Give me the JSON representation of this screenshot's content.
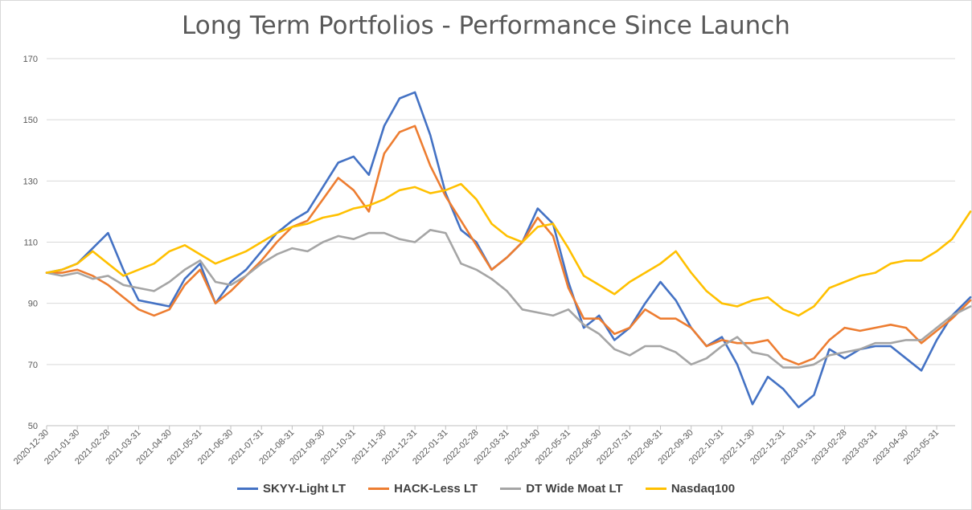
{
  "chart_data": {
    "type": "line",
    "title": "Long Term Portfolios - Performance Since Launch",
    "xlabel": "",
    "ylabel": "",
    "ylim": [
      50,
      170
    ],
    "yticks": [
      50,
      70,
      90,
      110,
      130,
      150,
      170
    ],
    "x_tick_labels": [
      "2020-12-30",
      "2021-01-30",
      "2021-02-28",
      "2021-03-31",
      "2021-04-30",
      "2021-05-31",
      "2021-06-30",
      "2021-07-31",
      "2021-08-31",
      "2021-09-30",
      "2021-10-31",
      "2021-11-30",
      "2021-12-31",
      "2022-01-31",
      "2022-02-28",
      "2022-03-31",
      "2022-04-30",
      "2022-05-31",
      "2022-06-30",
      "2022-07-31",
      "2022-08-31",
      "2022-09-30",
      "2022-10-31",
      "2022-11-30",
      "2022-12-31",
      "2023-01-31",
      "2023-02-28",
      "2023-03-31",
      "2023-04-30",
      "2023-05-31"
    ],
    "grid": "horizontal",
    "legend_position": "bottom",
    "series": [
      {
        "name": "SKYY-Light LT",
        "color": "#4472C4",
        "x": [
          0,
          0.5,
          1,
          1.5,
          2,
          2.5,
          3,
          3.5,
          4,
          4.5,
          5,
          5.5,
          6,
          6.5,
          7,
          7.5,
          8,
          8.5,
          9,
          9.5,
          10,
          10.5,
          11,
          11.5,
          12,
          12.5,
          13,
          13.5,
          14,
          14.5,
          15,
          15.5,
          16,
          16.5,
          17,
          17.5,
          18,
          18.5,
          19,
          19.5,
          20,
          20.5,
          21,
          21.5,
          22,
          22.5,
          23,
          23.5,
          24,
          24.5,
          25,
          25.5,
          26,
          26.5,
          27,
          27.5,
          28,
          28.5,
          29,
          29.5,
          30.1
        ],
        "values": [
          100,
          101,
          103,
          108,
          113,
          101,
          91,
          90,
          89,
          98,
          103,
          90,
          97,
          101,
          107,
          113,
          117,
          120,
          128,
          136,
          138,
          132,
          148,
          157,
          159,
          145,
          126,
          114,
          110,
          101,
          105,
          110,
          121,
          116,
          97,
          82,
          86,
          78,
          82,
          90,
          97,
          91,
          82,
          76,
          79,
          70,
          57,
          66,
          62,
          56,
          60,
          75,
          72,
          75,
          76,
          76,
          72,
          68,
          78,
          86,
          92
        ]
      },
      {
        "name": "HACK-Less LT",
        "color": "#ED7D31",
        "x": [
          0,
          0.5,
          1,
          1.5,
          2,
          2.5,
          3,
          3.5,
          4,
          4.5,
          5,
          5.5,
          6,
          6.5,
          7,
          7.5,
          8,
          8.5,
          9,
          9.5,
          10,
          10.5,
          11,
          11.5,
          12,
          12.5,
          13,
          13.5,
          14,
          14.5,
          15,
          15.5,
          16,
          16.5,
          17,
          17.5,
          18,
          18.5,
          19,
          19.5,
          20,
          20.5,
          21,
          21.5,
          22,
          22.5,
          23,
          23.5,
          24,
          24.5,
          25,
          25.5,
          26,
          26.5,
          27,
          27.5,
          28,
          28.5,
          29,
          29.5,
          30.1
        ],
        "values": [
          100,
          100,
          101,
          99,
          96,
          92,
          88,
          86,
          88,
          96,
          101,
          90,
          94,
          99,
          104,
          110,
          115,
          117,
          124,
          131,
          127,
          120,
          139,
          146,
          148,
          135,
          125,
          117,
          109,
          101,
          105,
          110,
          118,
          112,
          95,
          85,
          85,
          80,
          82,
          88,
          85,
          85,
          82,
          76,
          78,
          77,
          77,
          78,
          72,
          70,
          72,
          78,
          82,
          81,
          82,
          83,
          82,
          77,
          81,
          85,
          91
        ]
      },
      {
        "name": "DT Wide Moat LT",
        "color": "#A5A5A5",
        "x": [
          0,
          0.5,
          1,
          1.5,
          2,
          2.5,
          3,
          3.5,
          4,
          4.5,
          5,
          5.5,
          6,
          6.5,
          7,
          7.5,
          8,
          8.5,
          9,
          9.5,
          10,
          10.5,
          11,
          11.5,
          12,
          12.5,
          13,
          13.5,
          14,
          14.5,
          15,
          15.5,
          16,
          16.5,
          17,
          17.5,
          18,
          18.5,
          19,
          19.5,
          20,
          20.5,
          21,
          21.5,
          22,
          22.5,
          23,
          23.5,
          24,
          24.5,
          25,
          25.5,
          26,
          26.5,
          27,
          27.5,
          28,
          28.5,
          29,
          29.5,
          30.1
        ],
        "values": [
          100,
          99,
          100,
          98,
          99,
          96,
          95,
          94,
          97,
          101,
          104,
          97,
          96,
          99,
          103,
          106,
          108,
          107,
          110,
          112,
          111,
          113,
          113,
          111,
          110,
          114,
          113,
          103,
          101,
          98,
          94,
          88,
          87,
          86,
          88,
          83,
          80,
          75,
          73,
          76,
          76,
          74,
          70,
          72,
          76,
          79,
          74,
          73,
          69,
          69,
          70,
          73,
          74,
          75,
          77,
          77,
          78,
          78,
          82,
          86,
          89
        ]
      },
      {
        "name": "Nasdaq100",
        "color": "#FFC000",
        "x": [
          0,
          0.5,
          1,
          1.5,
          2,
          2.5,
          3,
          3.5,
          4,
          4.5,
          5,
          5.5,
          6,
          6.5,
          7,
          7.5,
          8,
          8.5,
          9,
          9.5,
          10,
          10.5,
          11,
          11.5,
          12,
          12.5,
          13,
          13.5,
          14,
          14.5,
          15,
          15.5,
          16,
          16.5,
          17,
          17.5,
          18,
          18.5,
          19,
          19.5,
          20,
          20.5,
          21,
          21.5,
          22,
          22.5,
          23,
          23.5,
          24,
          24.5,
          25,
          25.5,
          26,
          26.5,
          27,
          27.5,
          28,
          28.5,
          29,
          29.5,
          30.1
        ],
        "values": [
          100,
          101,
          103,
          107,
          103,
          99,
          101,
          103,
          107,
          109,
          106,
          103,
          105,
          107,
          110,
          113,
          115,
          116,
          118,
          119,
          121,
          122,
          124,
          127,
          128,
          126,
          127,
          129,
          124,
          116,
          112,
          110,
          115,
          116,
          108,
          99,
          96,
          93,
          97,
          100,
          103,
          107,
          100,
          94,
          90,
          89,
          91,
          92,
          88,
          86,
          89,
          95,
          97,
          99,
          100,
          103,
          104,
          104,
          107,
          111,
          120
        ]
      }
    ]
  },
  "legend": {
    "items": [
      {
        "label": "SKYY-Light LT"
      },
      {
        "label": "HACK-Less LT"
      },
      {
        "label": "DT Wide Moat LT"
      },
      {
        "label": "Nasdaq100"
      }
    ]
  }
}
